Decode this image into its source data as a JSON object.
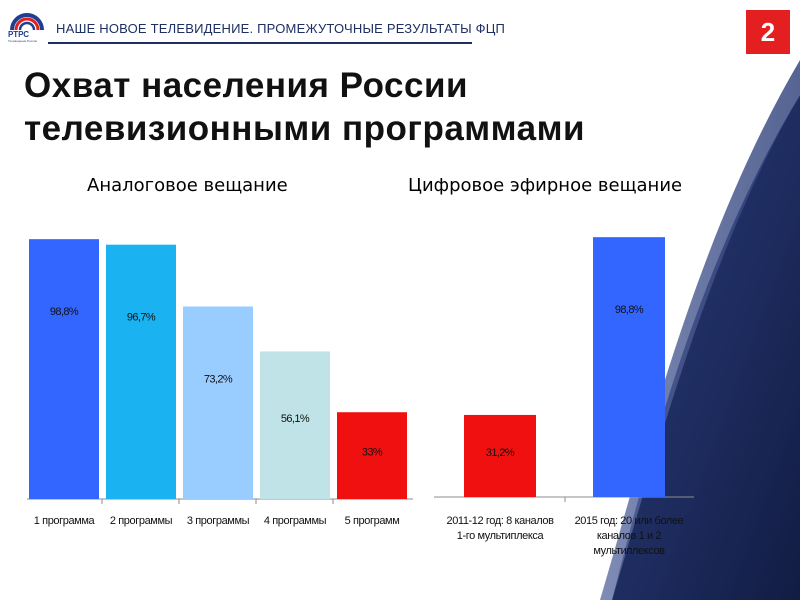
{
  "header": {
    "logo_text": "РТРС",
    "logo_sub": "Телевидение России",
    "section_title": "НАШЕ НОВОЕ ТЕЛЕВИДЕНИЕ. ПРОМЕЖУТОЧНЫЕ РЕЗУЛЬТАТЫ ФЦП",
    "page_number": "2"
  },
  "title": {
    "line1": "Охват населения России",
    "line2": "телевизионными программами"
  },
  "colors": {
    "brand_red": "#e41f1f",
    "header_navy": "#1e2f62"
  },
  "chart_data": [
    {
      "type": "bar",
      "title": "Аналоговое вещание",
      "categories": [
        "1 программа",
        "2 программы",
        "3 программы",
        "4 программы",
        "5 программ"
      ],
      "values": [
        98.8,
        96.7,
        73.2,
        56.1,
        33.0
      ],
      "data_labels": [
        "98,8%",
        "96,7%",
        "73,2%",
        "56,1%",
        "33%"
      ],
      "bar_colors": [
        "#3366ff",
        "#1ab2f0",
        "#99ccff",
        "#bfe3e6",
        "#f01010"
      ],
      "ylim": [
        0,
        100
      ],
      "grid": false,
      "legend": false
    },
    {
      "type": "bar",
      "title": "Цифровое эфирное вещание",
      "categories": [
        [
          "2011-12 год: 8 каналов",
          "1-го мультиплекса"
        ],
        [
          "2015 год: 20 или более",
          "каналов 1 и 2",
          "мультиплексов"
        ]
      ],
      "values": [
        31.2,
        98.8
      ],
      "data_labels": [
        "31,2%",
        "98,8%"
      ],
      "bar_colors": [
        "#f01010",
        "#3366ff"
      ],
      "ylim": [
        0,
        100
      ],
      "grid": false,
      "legend": false
    }
  ]
}
